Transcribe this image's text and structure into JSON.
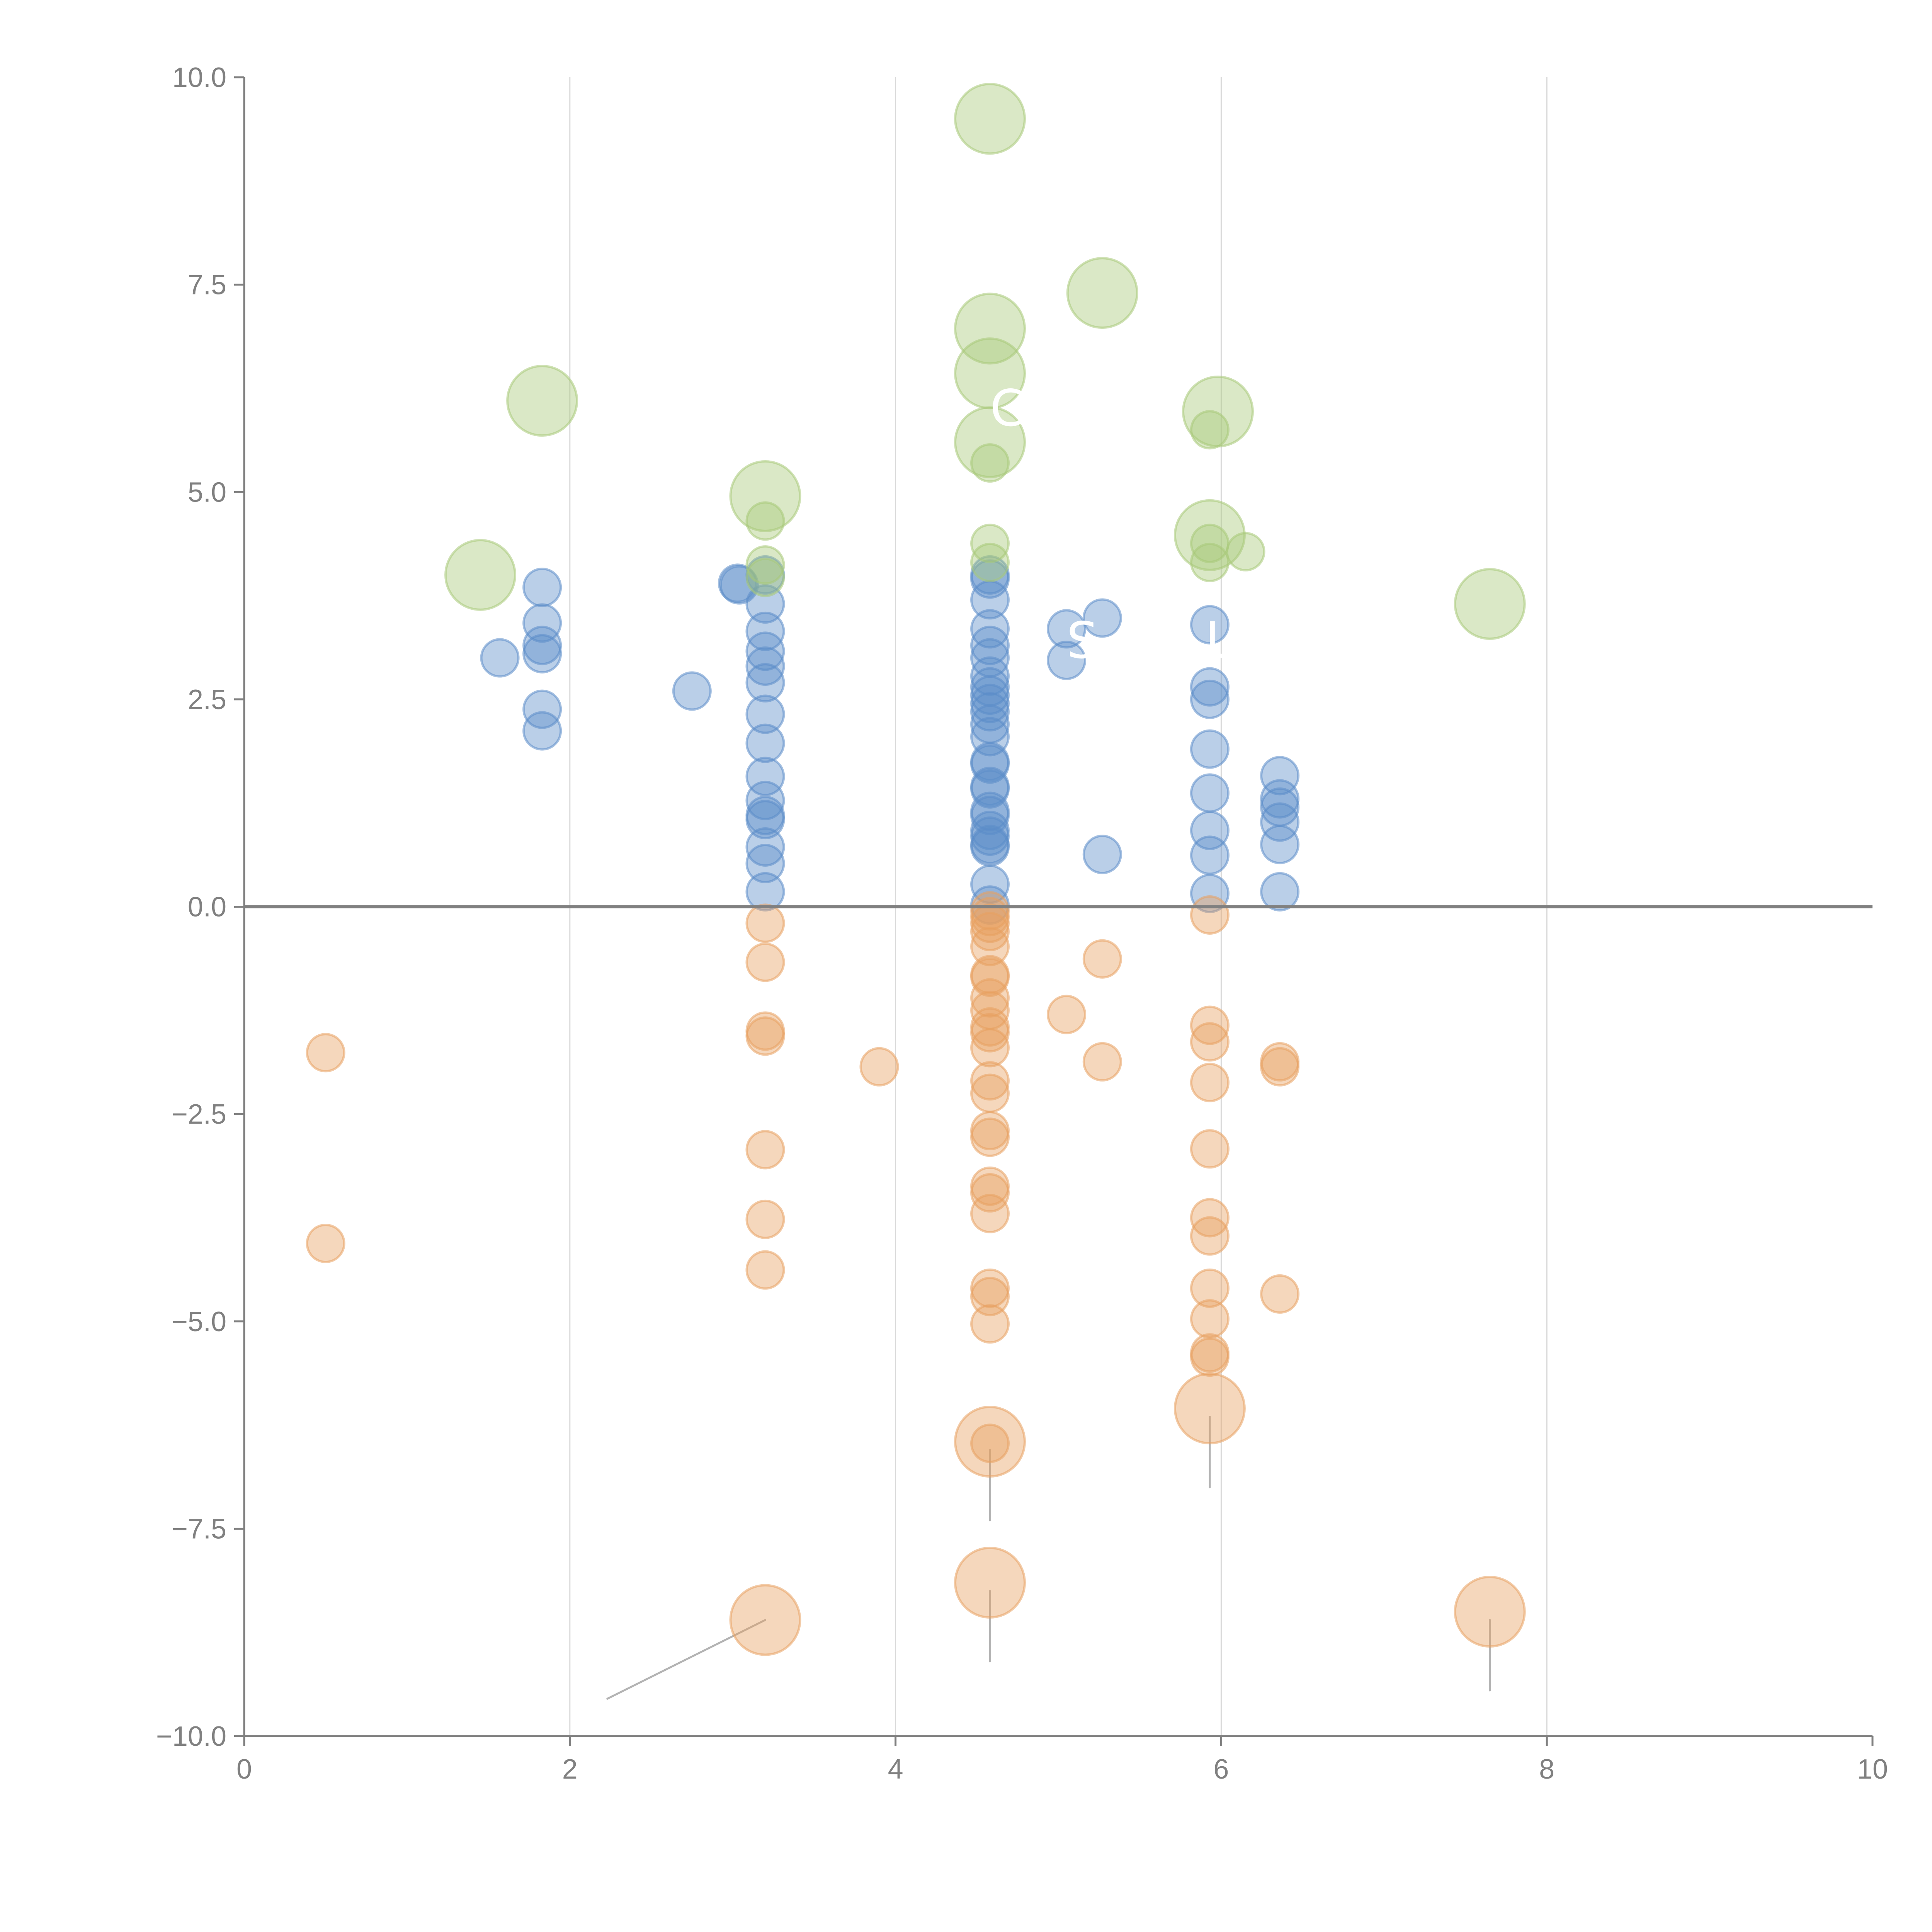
{
  "chart_data": {
    "type": "scatter",
    "title": "",
    "xlabel": "",
    "ylabel": "",
    "xlim": [
      0,
      10
    ],
    "ylim": [
      -10,
      10
    ],
    "x_ticks": [
      "0",
      "2",
      "4",
      "6",
      "8",
      "10"
    ],
    "x_tick_values": [
      0,
      2,
      4,
      6,
      8,
      10
    ],
    "y_ticks": [
      "10.0",
      "7.5",
      "5.0",
      "2.5",
      "0.0",
      "−2.5",
      "−5.0",
      "−7.5",
      "−10.0"
    ],
    "y_tick_values": [
      10,
      7.5,
      5,
      2.5,
      0,
      -2.5,
      -5,
      -7.5,
      -10
    ],
    "grid": "vertical",
    "zero_line": 0,
    "legend": "none",
    "colors": {
      "positive": "#5b8cc8",
      "negative": "#e8a060",
      "highlight": "#a8c878",
      "axis": "#808080",
      "grid": "#d9d9d9",
      "connector": "#b3b3b3"
    },
    "series": [
      {
        "name": "positive",
        "size": "small",
        "points": [
          [
            1.57,
            3.0
          ],
          [
            1.83,
            3.85
          ],
          [
            1.83,
            3.42
          ],
          [
            1.83,
            3.15
          ],
          [
            1.83,
            3.05
          ],
          [
            1.83,
            2.38
          ],
          [
            1.83,
            2.12
          ],
          [
            2.75,
            2.6
          ],
          [
            3.03,
            3.9
          ],
          [
            3.04,
            3.88
          ],
          [
            3.2,
            4.0
          ],
          [
            3.2,
            3.65
          ],
          [
            3.2,
            3.32
          ],
          [
            3.2,
            3.08
          ],
          [
            3.2,
            2.9
          ],
          [
            3.2,
            2.7
          ],
          [
            3.2,
            2.32
          ],
          [
            3.2,
            1.97
          ],
          [
            3.2,
            1.57
          ],
          [
            3.2,
            1.28
          ],
          [
            3.2,
            1.1
          ],
          [
            3.2,
            1.05
          ],
          [
            3.2,
            0.72
          ],
          [
            3.2,
            0.52
          ],
          [
            3.2,
            0.18
          ],
          [
            4.58,
            4.0
          ],
          [
            4.58,
            3.95
          ],
          [
            4.58,
            3.7
          ],
          [
            4.58,
            3.35
          ],
          [
            4.58,
            3.15
          ],
          [
            4.58,
            3.0
          ],
          [
            4.58,
            2.78
          ],
          [
            4.58,
            2.65
          ],
          [
            4.58,
            2.55
          ],
          [
            4.58,
            2.45
          ],
          [
            4.58,
            2.35
          ],
          [
            4.58,
            2.2
          ],
          [
            4.58,
            2.05
          ],
          [
            4.58,
            1.75
          ],
          [
            4.58,
            1.72
          ],
          [
            4.58,
            1.45
          ],
          [
            4.58,
            1.42
          ],
          [
            4.58,
            1.15
          ],
          [
            4.58,
            1.1
          ],
          [
            4.58,
            0.92
          ],
          [
            4.58,
            0.85
          ],
          [
            4.58,
            0.75
          ],
          [
            4.58,
            0.72
          ],
          [
            4.58,
            0.27
          ],
          [
            4.58,
            0.02
          ],
          [
            5.05,
            3.35
          ],
          [
            5.05,
            2.97
          ],
          [
            5.27,
            3.48
          ],
          [
            5.27,
            0.63
          ],
          [
            5.93,
            3.4
          ],
          [
            5.93,
            2.65
          ],
          [
            5.93,
            2.5
          ],
          [
            5.93,
            1.9
          ],
          [
            5.93,
            1.37
          ],
          [
            5.93,
            0.92
          ],
          [
            5.93,
            0.62
          ],
          [
            5.93,
            0.16
          ],
          [
            6.36,
            1.58
          ],
          [
            6.36,
            1.3
          ],
          [
            6.36,
            1.2
          ],
          [
            6.36,
            1.02
          ],
          [
            6.36,
            0.75
          ],
          [
            6.36,
            0.18
          ]
        ]
      },
      {
        "name": "negative",
        "size": "small",
        "points": [
          [
            0.5,
            -1.76
          ],
          [
            0.5,
            -4.06
          ],
          [
            3.2,
            -0.2
          ],
          [
            3.2,
            -0.67
          ],
          [
            3.2,
            -1.5
          ],
          [
            3.2,
            -1.56
          ],
          [
            3.2,
            -2.93
          ],
          [
            3.2,
            -3.77
          ],
          [
            3.2,
            -4.38
          ],
          [
            3.9,
            -1.93
          ],
          [
            4.58,
            -0.05
          ],
          [
            4.58,
            -0.12
          ],
          [
            4.58,
            -0.2
          ],
          [
            4.58,
            -0.3
          ],
          [
            4.58,
            -0.48
          ],
          [
            4.58,
            -0.82
          ],
          [
            4.58,
            -0.85
          ],
          [
            4.58,
            -1.1
          ],
          [
            4.58,
            -1.25
          ],
          [
            4.58,
            -1.45
          ],
          [
            4.58,
            -1.52
          ],
          [
            4.58,
            -1.7
          ],
          [
            4.58,
            -2.1
          ],
          [
            4.58,
            -2.25
          ],
          [
            4.58,
            -2.7
          ],
          [
            4.58,
            -2.78
          ],
          [
            4.58,
            -3.37
          ],
          [
            4.58,
            -3.45
          ],
          [
            4.58,
            -3.7
          ],
          [
            4.58,
            -4.6
          ],
          [
            4.58,
            -4.7
          ],
          [
            4.58,
            -5.03
          ],
          [
            4.58,
            -6.47
          ],
          [
            5.05,
            -1.3
          ],
          [
            5.27,
            -0.63
          ],
          [
            5.27,
            -1.87
          ],
          [
            5.93,
            -0.1
          ],
          [
            5.93,
            -1.43
          ],
          [
            5.93,
            -1.63
          ],
          [
            5.93,
            -2.12
          ],
          [
            5.93,
            -2.92
          ],
          [
            5.93,
            -3.75
          ],
          [
            5.93,
            -3.97
          ],
          [
            5.93,
            -4.6
          ],
          [
            5.93,
            -4.97
          ],
          [
            5.93,
            -5.38
          ],
          [
            5.93,
            -5.43
          ],
          [
            6.36,
            -1.87
          ],
          [
            6.36,
            -1.93
          ],
          [
            6.36,
            -4.67
          ]
        ]
      },
      {
        "name": "negative-highlight",
        "size": "large",
        "points": [
          [
            3.2,
            -8.6
          ],
          [
            4.58,
            -6.45
          ],
          [
            4.58,
            -8.15
          ],
          [
            5.93,
            -6.05
          ],
          [
            7.65,
            -8.5
          ]
        ]
      },
      {
        "name": "highlight",
        "size": "mixed",
        "points": [
          [
            1.45,
            4.0,
            "large"
          ],
          [
            1.83,
            6.1,
            "large"
          ],
          [
            3.2,
            4.95,
            "large"
          ],
          [
            3.2,
            4.65,
            "small"
          ],
          [
            3.2,
            4.12,
            "small"
          ],
          [
            3.2,
            3.97,
            "small"
          ],
          [
            4.58,
            9.5,
            "large"
          ],
          [
            4.58,
            6.97,
            "large"
          ],
          [
            4.58,
            6.43,
            "large"
          ],
          [
            4.58,
            5.6,
            "large"
          ],
          [
            4.58,
            5.35,
            "small"
          ],
          [
            4.58,
            4.38,
            "small"
          ],
          [
            4.58,
            4.15,
            "small"
          ],
          [
            5.27,
            7.4,
            "large"
          ],
          [
            5.93,
            4.48,
            "large"
          ],
          [
            5.93,
            5.75,
            "small"
          ],
          [
            5.93,
            4.38,
            "small"
          ],
          [
            5.93,
            4.15,
            "small"
          ],
          [
            5.98,
            5.97,
            "large"
          ],
          [
            6.15,
            4.28,
            "small"
          ],
          [
            7.65,
            3.65,
            "large"
          ]
        ]
      }
    ],
    "annotations": [
      {
        "text": "C.",
        "x": 4.58,
        "y": 5.8,
        "color": "#ffffff"
      },
      {
        "text": "S",
        "x": 5.05,
        "y": 3.0,
        "color": "#ffffff"
      },
      {
        "text": "L",
        "x": 5.9,
        "y": 3.0,
        "color": "#ffffff"
      }
    ],
    "connectors": [
      {
        "from": [
          3.2,
          -8.6
        ],
        "to": [
          2.23,
          -9.55
        ]
      },
      {
        "from": [
          4.58,
          -6.55
        ],
        "to": [
          4.58,
          -7.4
        ]
      },
      {
        "from": [
          4.58,
          -8.25
        ],
        "to": [
          4.58,
          -9.1
        ]
      },
      {
        "from": [
          5.93,
          -6.15
        ],
        "to": [
          5.93,
          -7.0
        ]
      },
      {
        "from": [
          7.65,
          -8.6
        ],
        "to": [
          7.65,
          -9.45
        ]
      }
    ]
  }
}
